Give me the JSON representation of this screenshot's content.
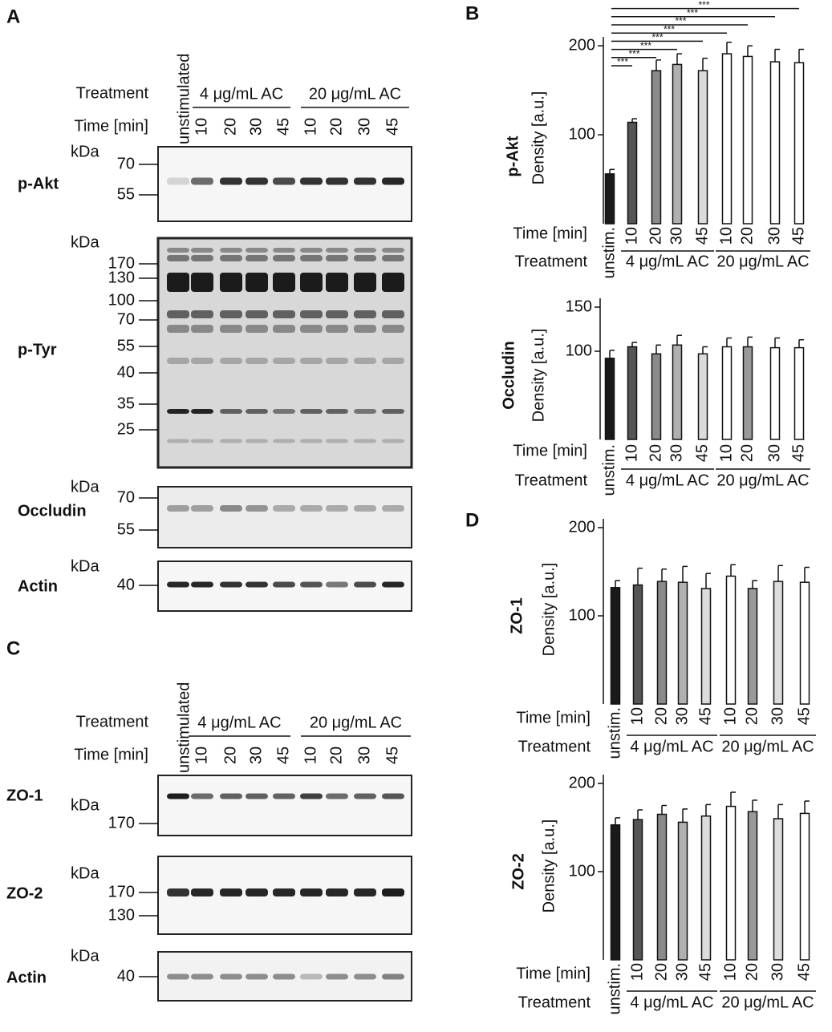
{
  "panels": [
    {
      "label": "A",
      "header": {
        "unstimulated": "unstimulated",
        "treatment": "Treatment",
        "groups": [
          "4 μg/mL AC",
          "20 μg/mL AC"
        ],
        "time": "Time [min]",
        "lanes": [
          "10",
          "20",
          "30",
          "45",
          "10",
          "20",
          "30",
          "45"
        ]
      },
      "blots": [
        {
          "name": "p-Akt",
          "unit": "kDa",
          "markers": [
            70,
            55
          ]
        },
        {
          "name": "p-Tyr",
          "unit": "kDa",
          "markers": [
            170,
            130,
            100,
            70,
            55,
            40,
            35,
            25
          ]
        },
        {
          "name": "Occludin",
          "unit": "kDa",
          "markers": [
            70,
            55
          ]
        },
        {
          "name": "Actin",
          "unit": "kDa",
          "markers": [
            40
          ]
        }
      ]
    },
    {
      "label": "B"
    },
    {
      "label": "C",
      "header": {
        "unstimulated": "unstimulated",
        "treatment": "Treatment",
        "groups": [
          "4 μg/mL AC",
          "20 μg/mL AC"
        ],
        "time": "Time [min]",
        "lanes": [
          "10",
          "20",
          "30",
          "45",
          "10",
          "20",
          "30",
          "45"
        ]
      },
      "blots": [
        {
          "name": "ZO-1",
          "unit": "kDa",
          "markers": [
            170
          ]
        },
        {
          "name": "ZO-2",
          "unit": "kDa",
          "markers": [
            170,
            130
          ]
        },
        {
          "name": "Actin",
          "unit": "kDa",
          "markers": [
            40
          ]
        }
      ]
    },
    {
      "label": "D"
    }
  ],
  "chart_data": [
    {
      "type": "bar",
      "title": "p-Akt",
      "ylabel": "Density [a.u.]",
      "categories": [
        "unstim.",
        "10",
        "20",
        "30",
        "45",
        "10",
        "20",
        "30",
        "45"
      ],
      "values": [
        56,
        114,
        172,
        179,
        172,
        191,
        188,
        182,
        181
      ],
      "errors": [
        5,
        4,
        12,
        12,
        14,
        13,
        12,
        14,
        15
      ],
      "colors": [
        "#1a1a1a",
        "#555555",
        "#8a8a8a",
        "#b0b0b0",
        "#dcdcdc",
        "#ffffff",
        "#ffffff",
        "#ffffff",
        "#ffffff"
      ],
      "ylim": [
        0,
        210
      ],
      "yticks": [
        100,
        200
      ],
      "row_labels": [
        "Time [min]",
        "Treatment"
      ],
      "groups": [
        "4 μg/mL AC",
        "20 μg/mL AC"
      ],
      "annotations": [
        "***",
        "***",
        "***",
        "***",
        "***",
        "***",
        "***",
        "***"
      ]
    },
    {
      "type": "bar",
      "title": "Occludin",
      "ylabel": "Density [a.u.]",
      "categories": [
        "unstim.",
        "10",
        "20",
        "30",
        "45",
        "10",
        "20",
        "30",
        "45"
      ],
      "values": [
        92,
        105,
        97,
        107,
        97,
        105,
        105,
        104,
        104
      ],
      "errors": [
        9,
        5,
        10,
        11,
        8,
        10,
        11,
        11,
        9
      ],
      "colors": [
        "#1a1a1a",
        "#555555",
        "#8a8a8a",
        "#b0b0b0",
        "#dcdcdc",
        "#ffffff",
        "#999999",
        "#ffffff",
        "#ffffff"
      ],
      "ylim": [
        0,
        160
      ],
      "yticks": [
        100,
        150
      ],
      "row_labels": [
        "Time [min]",
        "Treatment"
      ],
      "groups": [
        "4 μg/mL AC",
        "20 μg/mL AC"
      ]
    },
    {
      "type": "bar",
      "title": "ZO-1",
      "ylabel": "Density [a.u.]",
      "categories": [
        "unstim.",
        "10",
        "20",
        "30",
        "45",
        "10",
        "20",
        "30",
        "45"
      ],
      "values": [
        132,
        135,
        139,
        138,
        131,
        145,
        131,
        139,
        138
      ],
      "errors": [
        8,
        19,
        14,
        18,
        17,
        13,
        9,
        18,
        17
      ],
      "colors": [
        "#1a1a1a",
        "#555555",
        "#8a8a8a",
        "#b0b0b0",
        "#dcdcdc",
        "#ffffff",
        "#999999",
        "#dddddd",
        "#ffffff"
      ],
      "ylim": [
        0,
        210
      ],
      "yticks": [
        100,
        200
      ],
      "row_labels": [
        "Time [min]",
        "Treatment"
      ],
      "groups": [
        "4 μg/mL AC",
        "20 μg/mL AC"
      ]
    },
    {
      "type": "bar",
      "title": "ZO-2",
      "ylabel": "Density [a.u.]",
      "categories": [
        "unstim.",
        "10",
        "20",
        "30",
        "45",
        "10",
        "20",
        "30",
        "45"
      ],
      "values": [
        153,
        159,
        165,
        156,
        163,
        174,
        168,
        160,
        166
      ],
      "errors": [
        8,
        11,
        10,
        15,
        13,
        16,
        13,
        16,
        14
      ],
      "colors": [
        "#1a1a1a",
        "#555555",
        "#8a8a8a",
        "#b0b0b0",
        "#dcdcdc",
        "#ffffff",
        "#999999",
        "#dddddd",
        "#ffffff"
      ],
      "ylim": [
        0,
        210
      ],
      "yticks": [
        100,
        200
      ],
      "row_labels": [
        "Time [min]",
        "Treatment"
      ],
      "groups": [
        "4 μg/mL AC",
        "20 μg/mL AC"
      ]
    }
  ]
}
